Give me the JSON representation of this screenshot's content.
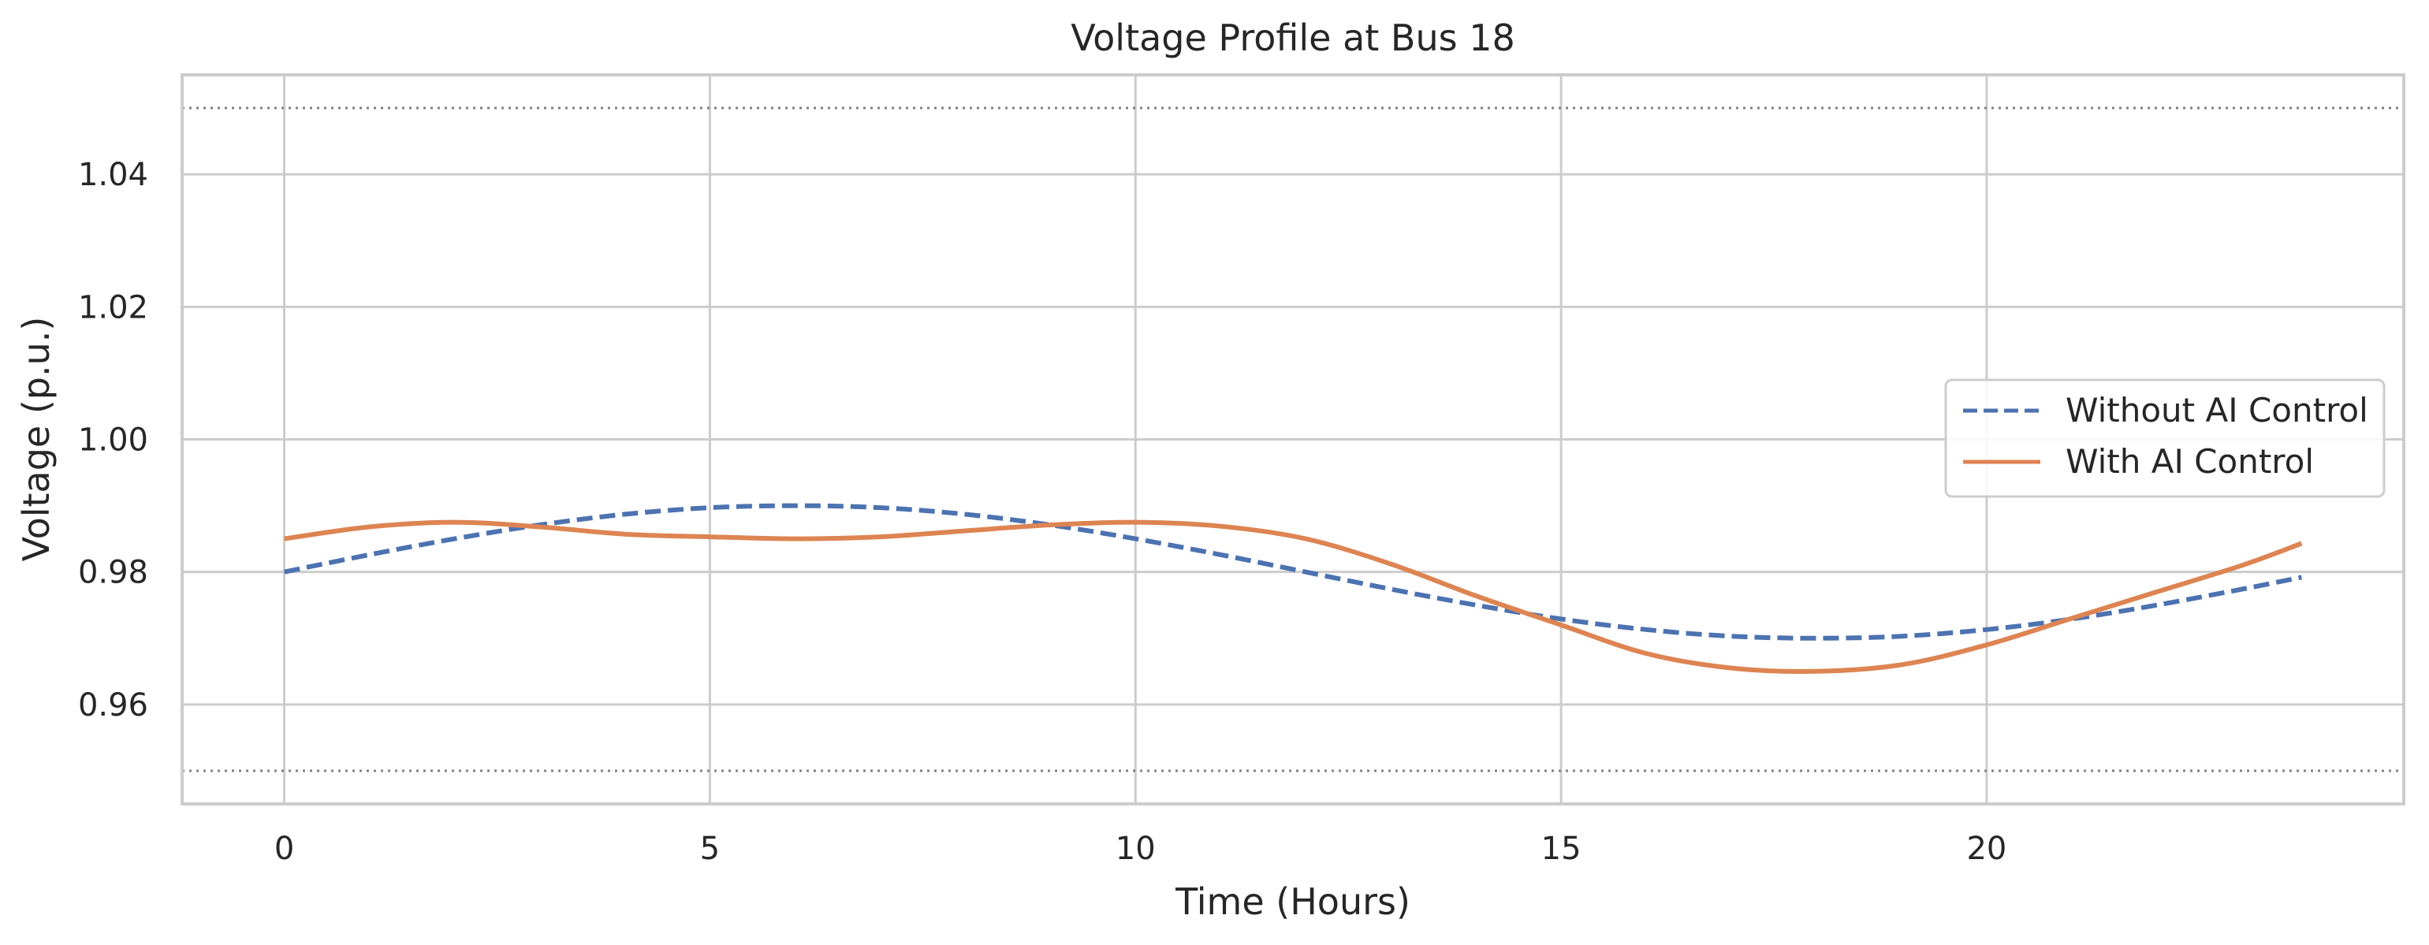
{
  "chart_data": {
    "type": "line",
    "title": "Voltage Profile at Bus 18",
    "xlabel": "Time (Hours)",
    "ylabel": "Voltage (p.u.)",
    "xlim": [
      -1.2,
      24.9
    ],
    "ylim": [
      0.945,
      1.055
    ],
    "x_ticks": [
      0,
      5,
      10,
      15,
      20
    ],
    "y_ticks": [
      0.96,
      0.98,
      1.0,
      1.02,
      1.04
    ],
    "y_tick_labels": [
      "0.96",
      "0.98",
      "1.00",
      "1.02",
      "1.04"
    ],
    "grid": true,
    "legend_position": "center-right",
    "reference_lines": [
      {
        "y": 1.05,
        "style": "dotted",
        "color": "#808080"
      },
      {
        "y": 0.95,
        "style": "dotted",
        "color": "#808080"
      }
    ],
    "x": [
      0,
      1,
      2,
      3,
      4,
      5,
      6,
      7,
      8,
      9,
      10,
      11,
      12,
      13,
      14,
      15,
      16,
      17,
      18,
      19,
      20,
      21,
      22,
      23,
      23.7
    ],
    "series": [
      {
        "name": "Without AI Control",
        "color": "#4c72b0",
        "style": "dashed",
        "values": [
          0.98,
          0.9826,
          0.985,
          0.9871,
          0.9887,
          0.9897,
          0.99,
          0.9897,
          0.9887,
          0.9871,
          0.985,
          0.9826,
          0.98,
          0.9774,
          0.975,
          0.9729,
          0.9713,
          0.9703,
          0.97,
          0.9703,
          0.9713,
          0.9729,
          0.975,
          0.9774,
          0.9792
        ]
      },
      {
        "name": "With AI Control",
        "color": "#dd8452",
        "style": "solid",
        "values": [
          0.985,
          0.9868,
          0.9875,
          0.9868,
          0.9857,
          0.9853,
          0.985,
          0.9853,
          0.9862,
          0.9871,
          0.9875,
          0.9869,
          0.985,
          0.9812,
          0.9764,
          0.972,
          0.9677,
          0.9655,
          0.965,
          0.966,
          0.969,
          0.973,
          0.977,
          0.981,
          0.9843
        ]
      }
    ]
  }
}
